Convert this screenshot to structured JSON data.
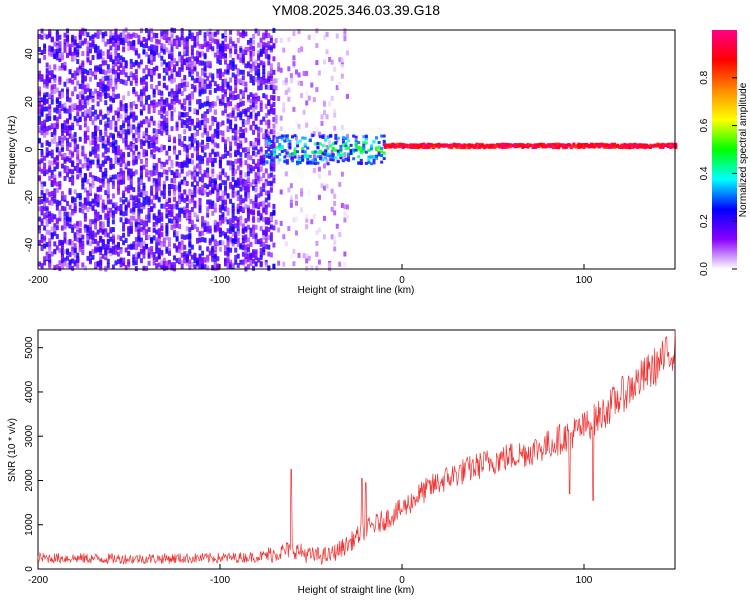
{
  "title": "YM08.2025.346.03.39.G18",
  "chart_data": [
    {
      "type": "heatmap",
      "xlabel": "Height of straight line (km)",
      "ylabel": "Frequency (Hz)",
      "xlim": [
        -200,
        150
      ],
      "ylim": [
        -50,
        50
      ],
      "xticks": [
        -200,
        -100,
        0,
        100
      ],
      "xtick_labels": [
        "-200",
        "-100",
        "0",
        "100"
      ],
      "yticks": [
        -40,
        -20,
        0,
        20,
        40
      ],
      "ytick_labels": [
        "-40",
        "-20",
        "0",
        "20",
        "40"
      ],
      "colorbar": {
        "label": "Normalized spectral amplitude",
        "range": [
          0.0,
          1.0
        ],
        "ticks": [
          0.0,
          0.2,
          0.4,
          0.6,
          0.8
        ],
        "tick_labels": [
          "0.0",
          "0.2",
          "0.4",
          "0.6",
          "0.8"
        ],
        "colormap": [
          "#ffffff",
          "#8800ff",
          "#0000ff",
          "#00ffff",
          "#00ff00",
          "#ffff00",
          "#ff8800",
          "#ff0000",
          "#ff0088"
        ]
      },
      "regions": [
        {
          "x": [
            -200,
            -70
          ],
          "freq": [
            -50,
            50
          ],
          "amplitude": [
            0.05,
            0.25
          ],
          "pattern": "noise, dense"
        },
        {
          "x": [
            -70,
            -30
          ],
          "freq": [
            -50,
            50
          ],
          "amplitude": [
            0.0,
            0.1
          ],
          "pattern": "noise, faint"
        },
        {
          "x": [
            -75,
            -10
          ],
          "freq": [
            -6,
            6
          ],
          "amplitude": [
            0.2,
            0.6
          ],
          "pattern": "signal emerging"
        },
        {
          "x": [
            -10,
            150
          ],
          "freq": [
            -1,
            4
          ],
          "amplitude": [
            0.6,
            1.0
          ],
          "pattern": "narrow tone near 1-2 Hz"
        }
      ]
    },
    {
      "type": "line",
      "xlabel": "Height of straight line (km)",
      "ylabel": "SNR (10 * v/v)",
      "xlim": [
        -200,
        150
      ],
      "ylim": [
        0,
        5400
      ],
      "xticks": [
        -200,
        -100,
        0,
        100
      ],
      "xtick_labels": [
        "-200",
        "-100",
        "0",
        "100"
      ],
      "yticks": [
        0,
        1000,
        2000,
        3000,
        4000,
        5000
      ],
      "ytick_labels": [
        "0",
        "1000",
        "2000",
        "3000",
        "4000",
        "5000"
      ],
      "color": "#ee3333",
      "trend": {
        "x": [
          -200,
          -150,
          -100,
          -80,
          -70,
          -60,
          -50,
          -40,
          -30,
          -20,
          -10,
          0,
          10,
          20,
          30,
          40,
          50,
          60,
          70,
          80,
          90,
          100,
          110,
          120,
          130,
          140,
          150
        ],
        "y": [
          250,
          230,
          250,
          270,
          350,
          450,
          300,
          300,
          550,
          900,
          1100,
          1350,
          1700,
          1950,
          2150,
          2300,
          2450,
          2550,
          2650,
          2800,
          3000,
          3200,
          3500,
          3900,
          4250,
          4600,
          5000
        ]
      },
      "noise_amplitude": 300,
      "spikes": [
        {
          "x": -61,
          "y": 2250
        },
        {
          "x": -22,
          "y": 2050
        },
        {
          "x": -20,
          "y": 1950
        },
        {
          "x": 92,
          "y": 1700
        },
        {
          "x": 105,
          "y": 1550
        }
      ]
    }
  ]
}
